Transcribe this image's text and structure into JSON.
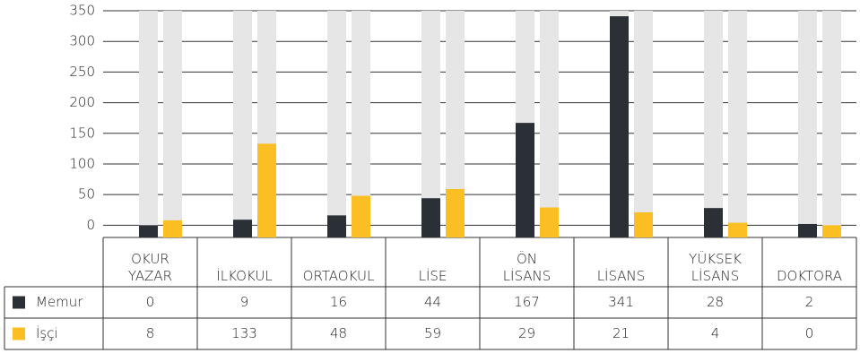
{
  "chart_data": {
    "type": "bar",
    "categories": [
      "OKUR YAZAR",
      "İLKOKUL",
      "ORTAOKUL",
      "LİSE",
      "ÖN LİSANS",
      "LİSANS",
      "YÜKSEK LİSANS",
      "DOKTORA"
    ],
    "series": [
      {
        "name": "Memur",
        "color": "#2b2f36",
        "values": [
          0,
          9,
          16,
          44,
          167,
          341,
          28,
          2
        ]
      },
      {
        "name": "İşçi",
        "color": "#fbbf24",
        "values": [
          8,
          133,
          48,
          59,
          29,
          21,
          4,
          0
        ]
      }
    ],
    "ylim": [
      -20,
      350
    ],
    "yticks": [
      0,
      50,
      100,
      150,
      200,
      250,
      300,
      350
    ],
    "grid": true
  }
}
